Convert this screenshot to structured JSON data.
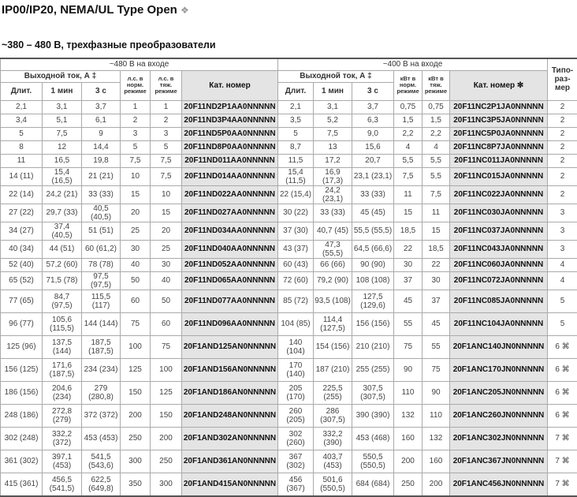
{
  "title": "IP00/IP20, NEMA/UL Type Open",
  "title_symbol": "❖",
  "subtitle": "~380 – 480 В, трехфазные преобразователи",
  "header": {
    "group_480": "~480 В на входе",
    "group_400": "~400 В на входе",
    "output_current": "Выходной ток, А ‡",
    "hp_normal": "л.с. в норм. режиме",
    "hp_heavy": "л.с. в тяж. режиме",
    "kw_normal": "кВт в норм. режиме",
    "kw_heavy": "кВт в тяж. режиме",
    "cat_480": "Кат. номер",
    "cat_400": "Кат. номер ✻",
    "frame": "Типо-раз-мер",
    "cont": "Длит.",
    "min1": "1 мин",
    "sec3": "3 с"
  },
  "rows": [
    [
      "2,1",
      "3,1",
      "3,7",
      "1",
      "1",
      "20F11ND2P1AA0NNNNN",
      "2,1",
      "3,1",
      "3,7",
      "0,75",
      "0,75",
      "20F11NC2P1JA0NNNNN",
      "2"
    ],
    [
      "3,4",
      "5,1",
      "6,1",
      "2",
      "2",
      "20F11ND3P4AA0NNNNN",
      "3,5",
      "5,2",
      "6,3",
      "1,5",
      "1,5",
      "20F11NC3P5JA0NNNNN",
      "2"
    ],
    [
      "5",
      "7,5",
      "9",
      "3",
      "3",
      "20F11ND5P0AA0NNNNN",
      "5",
      "7,5",
      "9,0",
      "2,2",
      "2,2",
      "20F11NC5P0JA0NNNNN",
      "2"
    ],
    [
      "8",
      "12",
      "14,4",
      "5",
      "5",
      "20F11ND8P0AA0NNNNN",
      "8,7",
      "13",
      "15,6",
      "4",
      "4",
      "20F11NC8P7JA0NNNNN",
      "2"
    ],
    [
      "11",
      "16,5",
      "19,8",
      "7,5",
      "7,5",
      "20F11ND011AA0NNNNN",
      "11,5",
      "17,2",
      "20,7",
      "5,5",
      "5,5",
      "20F11NC011JA0NNNNN",
      "2"
    ],
    [
      "14 (11)",
      "15,4 (16,5)",
      "21 (21)",
      "10",
      "7,5",
      "20F11ND014AA0NNNNN",
      "15,4 (11,5)",
      "16,9 (17,3)",
      "23,1 (23,1)",
      "7,5",
      "5,5",
      "20F11NC015JA0NNNNN",
      "2"
    ],
    [
      "22 (14)",
      "24,2 (21)",
      "33 (33)",
      "15",
      "10",
      "20F11ND022AA0NNNNN",
      "22 (15,4)",
      "24,2 (23,1)",
      "33 (33)",
      "11",
      "7,5",
      "20F11NC022JA0NNNNN",
      "2"
    ],
    [
      "27 (22)",
      "29,7 (33)",
      "40,5 (40,5)",
      "20",
      "15",
      "20F11ND027AA0NNNNN",
      "30 (22)",
      "33 (33)",
      "45 (45)",
      "15",
      "11",
      "20F11NC030JA0NNNNN",
      "3"
    ],
    [
      "34 (27)",
      "37,4 (40,5)",
      "51 (51)",
      "25",
      "20",
      "20F11ND034AA0NNNNN",
      "37 (30)",
      "40,7 (45)",
      "55,5 (55,5)",
      "18,5",
      "15",
      "20F11NC037JA0NNNNN",
      "3"
    ],
    [
      "40 (34)",
      "44 (51)",
      "60 (61,2)",
      "30",
      "25",
      "20F11ND040AA0NNNNN",
      "43 (37)",
      "47,3 (55,5)",
      "64,5 (66,6)",
      "22",
      "18,5",
      "20F11NC043JA0NNNNN",
      "3"
    ],
    [
      "52 (40)",
      "57,2 (60)",
      "78 (78)",
      "40",
      "30",
      "20F11ND052AA0NNNNN",
      "60 (43)",
      "66 (66)",
      "90 (90)",
      "30",
      "22",
      "20F11NC060JA0NNNNN",
      "4"
    ],
    [
      "65 (52)",
      "71,5 (78)",
      "97,5 (97,5)",
      "50",
      "40",
      "20F11ND065AA0NNNNN",
      "72 (60)",
      "79,2 (90)",
      "108 (108)",
      "37",
      "30",
      "20F11NC072JA0NNNNN",
      "4"
    ],
    [
      "77 (65)",
      "84,7 (97,5)",
      "115,5 (117)",
      "60",
      "50",
      "20F11ND077AA0NNNNN",
      "85 (72)",
      "93,5 (108)",
      "127,5 (129,6)",
      "45",
      "37",
      "20F11NC085JA0NNNNN",
      "5"
    ],
    [
      "96 (77)",
      "105,6 (115,5)",
      "144 (144)",
      "75",
      "60",
      "20F11ND096AA0NNNNN",
      "104 (85)",
      "114,4 (127,5)",
      "156 (156)",
      "55",
      "45",
      "20F11NC104JA0NNNNN",
      "5"
    ],
    [
      "125 (96)",
      "137,5 (144)",
      "187,5 (187,5)",
      "100",
      "75",
      "20F1AND125AN0NNNNN",
      "140 (104)",
      "154 (156)",
      "210 (210)",
      "75",
      "55",
      "20F1ANC140JN0NNNNN",
      "6 ⌘"
    ],
    [
      "156 (125)",
      "171,6 (187,5)",
      "234 (234)",
      "125",
      "100",
      "20F1AND156AN0NNNNN",
      "170 (140)",
      "187 (210)",
      "255 (255)",
      "90",
      "75",
      "20F1ANC170JN0NNNNN",
      "6 ⌘"
    ],
    [
      "186 (156)",
      "204,6 (234)",
      "279 (280,8)",
      "150",
      "125",
      "20F1AND186AN0NNNNN",
      "205 (170)",
      "225,5 (255)",
      "307,5 (307,5)",
      "110",
      "90",
      "20F1ANC205JN0NNNNN",
      "6 ⌘"
    ],
    [
      "248 (186)",
      "272,8 (279)",
      "372 (372)",
      "200",
      "150",
      "20F1AND248AN0NNNNN",
      "260 (205)",
      "286 (307,5)",
      "390 (390)",
      "132",
      "110",
      "20F1ANC260JN0NNNNN",
      "6 ⌘"
    ],
    [
      "302 (248)",
      "332,2 (372)",
      "453 (453)",
      "250",
      "200",
      "20F1AND302AN0NNNNN",
      "302 (260)",
      "332,2 (390)",
      "453 (468)",
      "160",
      "132",
      "20F1ANC302JN0NNNNN",
      "7 ⌘"
    ],
    [
      "361 (302)",
      "397,1 (453)",
      "541,5 (543,6)",
      "300",
      "250",
      "20F1AND361AN0NNNNN",
      "367 (302)",
      "403,7 (453)",
      "550,5 (550,5)",
      "200",
      "160",
      "20F1ANC367JN0NNNNN",
      "7 ⌘"
    ],
    [
      "415 (361)",
      "456,5 (541,5)",
      "622,5 (649,8)",
      "350",
      "300",
      "20F1AND415AN0NNNNN",
      "456 (367)",
      "501,6 (550,5)",
      "684 (684)",
      "250",
      "200",
      "20F1ANC456JN0NNNNN",
      "7 ⌘"
    ]
  ]
}
